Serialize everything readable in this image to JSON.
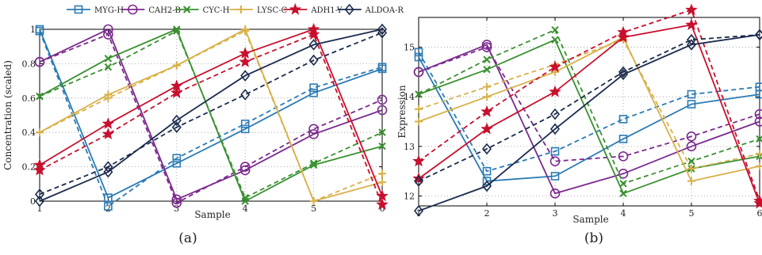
{
  "legend": [
    "MYG-H",
    "CAH2-B",
    "CYC-H",
    "LYSC-C",
    "ADH1-Y",
    "ALDOA-R"
  ],
  "chart_data": [
    {
      "type": "line",
      "panel_label": "(a)",
      "xlabel": "Sample",
      "ylabel": "Concentration (scaled)",
      "x": [
        1,
        2,
        3,
        4,
        5,
        6
      ],
      "xlim": [
        1,
        6
      ],
      "ylim": [
        0,
        1
      ],
      "xticks": [
        "1",
        "2",
        "3",
        "4",
        "5",
        "6"
      ],
      "yticks": [
        "0",
        "0.2",
        "0.4",
        "0.6",
        "0.8",
        "1"
      ],
      "grid": true,
      "legend_position": "top, above plot",
      "series": [
        {
          "name": "MYG-H",
          "color": "#2b7bb5",
          "marker": "square",
          "solid": [
            1.0,
            0.02,
            0.22,
            0.42,
            0.63,
            0.77
          ],
          "dashed": [
            0.99,
            -0.03,
            0.25,
            0.45,
            0.66,
            0.78
          ]
        },
        {
          "name": "CAH2-B",
          "color": "#7b2a8e",
          "marker": "circle",
          "solid": [
            0.81,
            1.0,
            0.01,
            0.18,
            0.39,
            0.53
          ],
          "dashed": [
            0.81,
            0.97,
            -0.01,
            0.2,
            0.42,
            0.59
          ]
        },
        {
          "name": "CYC-H",
          "color": "#3a9130",
          "marker": "x",
          "solid": [
            0.61,
            0.83,
            1.0,
            0.0,
            0.21,
            0.32
          ],
          "dashed": [
            0.61,
            0.78,
            0.99,
            0.02,
            0.22,
            0.4
          ]
        },
        {
          "name": "LYSC-C",
          "color": "#d8b14a",
          "marker": "plus",
          "solid": [
            0.4,
            0.62,
            0.79,
            1.0,
            0.0,
            0.11
          ],
          "dashed": [
            0.4,
            0.6,
            0.79,
            0.99,
            0.0,
            0.16
          ]
        },
        {
          "name": "ADH1-Y",
          "color": "#c8102e",
          "marker": "star",
          "solid": [
            0.21,
            0.45,
            0.67,
            0.86,
            1.0,
            0.03
          ],
          "dashed": [
            0.18,
            0.39,
            0.63,
            0.81,
            0.97,
            -0.02
          ]
        },
        {
          "name": "ALDOA-R",
          "color": "#1c2b4d",
          "marker": "diamond",
          "solid": [
            0.0,
            0.17,
            0.47,
            0.73,
            0.91,
            1.0
          ],
          "dashed": [
            0.04,
            0.2,
            0.43,
            0.62,
            0.82,
            0.98
          ]
        }
      ]
    },
    {
      "type": "line",
      "panel_label": "(b)",
      "xlabel": "Sample",
      "ylabel": "Expression",
      "x": [
        1,
        2,
        3,
        4,
        5,
        6
      ],
      "xlim": [
        1,
        6
      ],
      "ylim": [
        11.8,
        15.6
      ],
      "xticks": [
        "1",
        "2",
        "3",
        "4",
        "5",
        "6"
      ],
      "yticks": [
        "12",
        "13",
        "14",
        "15"
      ],
      "grid": true,
      "series": [
        {
          "name": "MYG-H",
          "color": "#2b7bb5",
          "marker": "square",
          "solid": [
            14.8,
            12.3,
            12.4,
            13.15,
            13.85,
            14.05
          ],
          "dashed": [
            14.9,
            12.5,
            12.9,
            13.55,
            14.05,
            14.2
          ]
        },
        {
          "name": "CAH2-B",
          "color": "#7b2a8e",
          "marker": "circle",
          "solid": [
            14.5,
            15.05,
            12.05,
            12.45,
            13.0,
            13.5
          ],
          "dashed": [
            14.5,
            15.0,
            12.7,
            12.8,
            13.2,
            13.65
          ]
        },
        {
          "name": "CYC-H",
          "color": "#3a9130",
          "marker": "x",
          "solid": [
            14.05,
            14.55,
            15.15,
            12.05,
            12.55,
            12.8
          ],
          "dashed": [
            14.05,
            14.75,
            15.35,
            12.25,
            12.7,
            13.15
          ]
        },
        {
          "name": "LYSC-C",
          "color": "#d8b14a",
          "marker": "plus",
          "solid": [
            13.5,
            14.0,
            14.5,
            15.2,
            12.3,
            12.6
          ],
          "dashed": [
            13.75,
            14.2,
            14.65,
            15.15,
            12.55,
            12.85
          ]
        },
        {
          "name": "ADH1-Y",
          "color": "#c8102e",
          "marker": "star",
          "solid": [
            12.35,
            13.35,
            14.1,
            15.2,
            15.45,
            11.85
          ],
          "dashed": [
            12.7,
            13.7,
            14.6,
            15.3,
            15.75,
            11.9
          ]
        },
        {
          "name": "ALDOA-R",
          "color": "#1c2b4d",
          "marker": "diamond",
          "solid": [
            11.7,
            12.2,
            13.35,
            14.45,
            15.05,
            15.25
          ],
          "dashed": [
            12.3,
            12.95,
            13.65,
            14.5,
            15.15,
            15.25
          ]
        }
      ]
    }
  ]
}
